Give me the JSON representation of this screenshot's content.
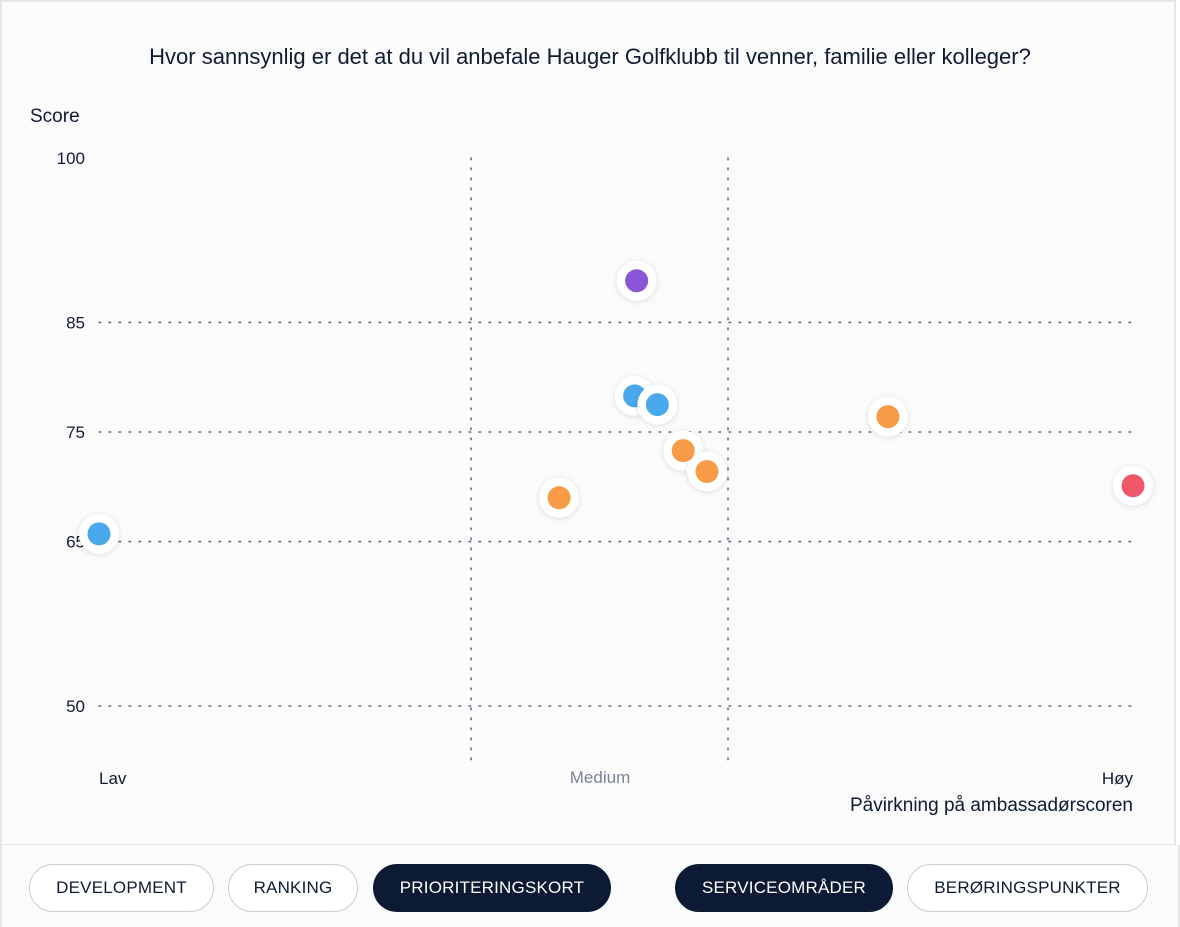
{
  "question": "Hvor sannsynlig er det at du vil anbefale Hauger Golfklubb til venner, familie eller kolleger?",
  "chart_data": {
    "type": "scatter",
    "title": "",
    "ylabel": "Score",
    "xlabel": "Påvirkning på ambassadørscoren",
    "yticks": [
      100,
      85,
      75,
      65,
      50
    ],
    "ylim": [
      45,
      100
    ],
    "xlim": [
      0,
      1
    ],
    "x_category_labels": [
      "Lav",
      "Medium",
      "Høy"
    ],
    "x_dividers": [
      0.35,
      0.6
    ],
    "grid": "dotted",
    "points": [
      {
        "x": 0.0,
        "y": 65.7,
        "color": "#4aa8ec"
      },
      {
        "x": 0.445,
        "y": 69.0,
        "color": "#f89b46"
      },
      {
        "x": 0.52,
        "y": 88.8,
        "color": "#8a55d6"
      },
      {
        "x": 0.518,
        "y": 78.3,
        "color": "#4aa8ec"
      },
      {
        "x": 0.54,
        "y": 77.5,
        "color": "#4aa8ec"
      },
      {
        "x": 0.565,
        "y": 73.3,
        "color": "#f89b46"
      },
      {
        "x": 0.588,
        "y": 71.4,
        "color": "#f89b46"
      },
      {
        "x": 0.763,
        "y": 76.4,
        "color": "#f89b46"
      },
      {
        "x": 1.0,
        "y": 70.1,
        "color": "#f0576a"
      }
    ]
  },
  "tabs": [
    {
      "label": "DEVELOPMENT",
      "active": false
    },
    {
      "label": "RANKING",
      "active": false
    },
    {
      "label": "PRIORITERINGSKORT",
      "active": true
    },
    {
      "label": "SERVICEOMRÅDER",
      "active": true
    },
    {
      "label": "BERØRINGSPUNKTER",
      "active": false
    }
  ]
}
